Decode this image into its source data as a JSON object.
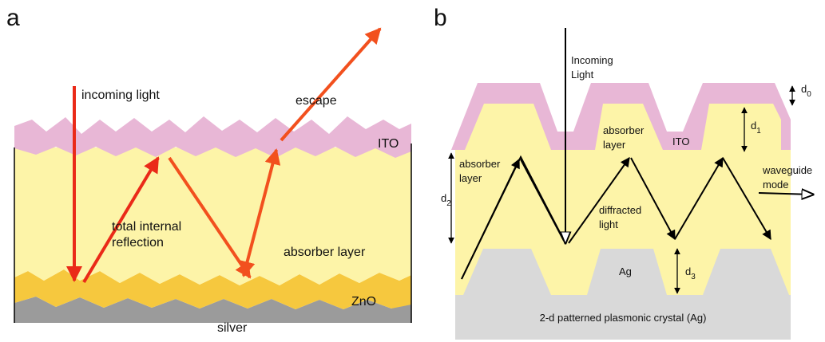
{
  "panel_a": {
    "label": "a",
    "incoming": "incoming light",
    "escape": "escape",
    "ito": "ITO",
    "tir": [
      "total internal",
      "reflection"
    ],
    "absorber": "absorber layer",
    "zno": "ZnO",
    "silver": "silver"
  },
  "panel_b": {
    "label": "b",
    "incoming": [
      "Incoming",
      "Light"
    ],
    "d0": {
      "base": "d",
      "sub": "0"
    },
    "d1": {
      "base": "d",
      "sub": "1"
    },
    "d2": {
      "base": "d",
      "sub": "2"
    },
    "d3": {
      "base": "d",
      "sub": "3"
    },
    "ito": "ITO",
    "absorber_top": [
      "absorber",
      "layer"
    ],
    "absorber_left": [
      "absorber",
      "layer"
    ],
    "waveguide": [
      "waveguide",
      "mode"
    ],
    "diffracted": [
      "diffracted",
      "light"
    ],
    "ag": "Ag",
    "substrate": "2-d patterned plasmonic crystal (Ag)"
  }
}
